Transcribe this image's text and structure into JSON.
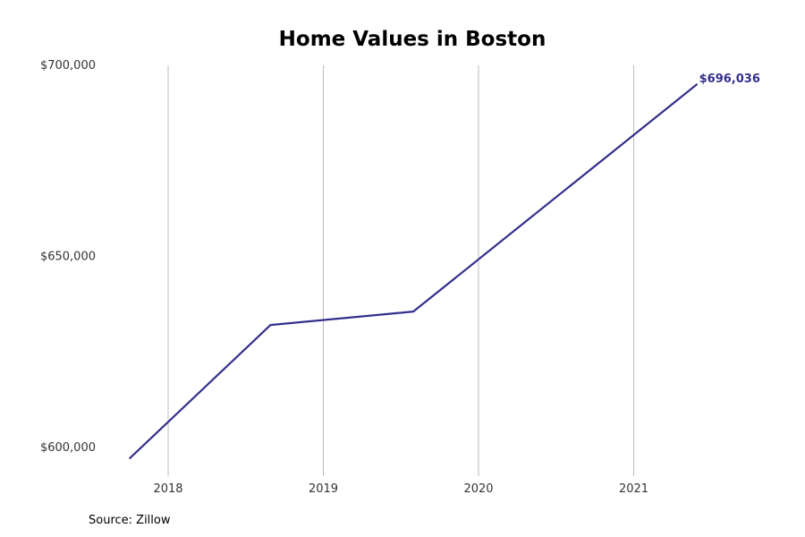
{
  "chart_data": {
    "type": "line",
    "title": "Home Values in Boston",
    "xlabel": "",
    "ylabel": "",
    "x_ticks": [
      "2018",
      "2019",
      "2020",
      "2021"
    ],
    "y_ticks": [
      "$600,000",
      "$650,000",
      "$700,000"
    ],
    "ylim": [
      598000,
      701000
    ],
    "grid": "vertical",
    "series": [
      {
        "color": "#332f8c",
        "points": [
          {
            "x": 2017.75,
            "y": 598000
          },
          {
            "x": 2018.66,
            "y": 633000
          },
          {
            "x": 2019.58,
            "y": 636500
          },
          {
            "x": 2021.41,
            "y": 696036
          }
        ],
        "end_label": "$696,036"
      }
    ]
  },
  "source": "Source: Zillow"
}
